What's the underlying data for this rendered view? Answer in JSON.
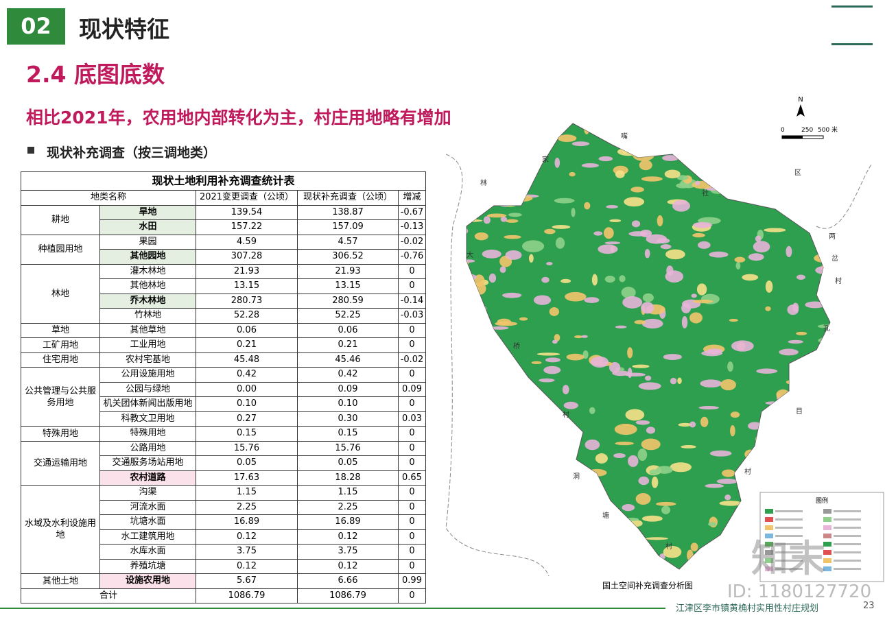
{
  "header": {
    "section_number": "02",
    "section_title": "现状特征",
    "heading": "2.4 底图底数",
    "subtitle": "相比2021年，农用地内部转化为主，村庄用地略有增加",
    "bullet": "现状补充调查（按三调地类）"
  },
  "table": {
    "title": "现状土地利用补充调查统计表",
    "columns": [
      "地类名称",
      "2021变更调查（公顷）",
      "现状补充调查（公顷）",
      "增减"
    ],
    "groups": [
      {
        "name": "耕地",
        "rows": [
          {
            "cells": [
              "旱地",
              "139.54",
              "138.87",
              "-0.67"
            ],
            "highlight": "#e4efe1"
          },
          {
            "cells": [
              "水田",
              "157.22",
              "157.09",
              "-0.13"
            ],
            "highlight": "#e4efe1"
          }
        ]
      },
      {
        "name": "种植园用地",
        "rows": [
          {
            "cells": [
              "果园",
              "4.59",
              "4.57",
              "-0.02"
            ]
          },
          {
            "cells": [
              "其他园地",
              "307.28",
              "306.52",
              "-0.76"
            ],
            "highlight": "#e4efe1"
          }
        ]
      },
      {
        "name": "林地",
        "rows": [
          {
            "cells": [
              "灌木林地",
              "21.93",
              "21.93",
              "0"
            ]
          },
          {
            "cells": [
              "其他林地",
              "13.15",
              "13.15",
              "0"
            ]
          },
          {
            "cells": [
              "乔木林地",
              "280.73",
              "280.59",
              "-0.14"
            ],
            "highlight": "#e4efe1"
          },
          {
            "cells": [
              "竹林地",
              "52.28",
              "52.25",
              "-0.03"
            ]
          }
        ]
      },
      {
        "name": "草地",
        "rows": [
          {
            "cells": [
              "其他草地",
              "0.06",
              "0.06",
              "0"
            ]
          }
        ]
      },
      {
        "name": "工矿用地",
        "rows": [
          {
            "cells": [
              "工业用地",
              "0.21",
              "0.21",
              "0"
            ]
          }
        ]
      },
      {
        "name": "住宅用地",
        "rows": [
          {
            "cells": [
              "农村宅基地",
              "45.48",
              "45.46",
              "-0.02"
            ]
          }
        ]
      },
      {
        "name": "公共管理与公共服务用地",
        "rows": [
          {
            "cells": [
              "公用设施用地",
              "0.42",
              "0.42",
              "0"
            ]
          },
          {
            "cells": [
              "公园与绿地",
              "0.00",
              "0.09",
              "0.09"
            ]
          },
          {
            "cells": [
              "机关团体新闻出版用地",
              "0.10",
              "0.10",
              "0"
            ]
          },
          {
            "cells": [
              "科教文卫用地",
              "0.27",
              "0.30",
              "0.03"
            ]
          }
        ]
      },
      {
        "name": "特殊用地",
        "rows": [
          {
            "cells": [
              "特殊用地",
              "0.15",
              "0.15",
              "0"
            ]
          }
        ]
      },
      {
        "name": "交通运输用地",
        "rows": [
          {
            "cells": [
              "公路用地",
              "15.76",
              "15.76",
              "0"
            ]
          },
          {
            "cells": [
              "交通服务场站用地",
              "0.05",
              "0.05",
              "0"
            ]
          },
          {
            "cells": [
              "农村道路",
              "17.63",
              "18.28",
              "0.65"
            ],
            "highlight": "#fbe1ea"
          }
        ]
      },
      {
        "name": "水域及水利设施用地",
        "rows": [
          {
            "cells": [
              "沟渠",
              "1.15",
              "1.15",
              "0"
            ]
          },
          {
            "cells": [
              "河流水面",
              "2.25",
              "2.25",
              "0"
            ]
          },
          {
            "cells": [
              "坑塘水面",
              "16.89",
              "16.89",
              "0"
            ]
          },
          {
            "cells": [
              "水工建筑用地",
              "0.12",
              "0.12",
              "0"
            ]
          },
          {
            "cells": [
              "水库水面",
              "3.75",
              "3.75",
              "0"
            ]
          },
          {
            "cells": [
              "养殖坑塘",
              "0.12",
              "0.12",
              "0"
            ]
          }
        ]
      },
      {
        "name": "其他土地",
        "rows": [
          {
            "cells": [
              "设施农用地",
              "5.67",
              "6.66",
              "0.99"
            ],
            "highlight": "#fbe1ea"
          }
        ]
      }
    ],
    "total": [
      "合计",
      "1086.79",
      "1086.79",
      "0"
    ]
  },
  "map": {
    "caption": "国土空间补充调查分析图",
    "north": "N",
    "scale": [
      "0",
      "250",
      "500 米"
    ],
    "legend_title": "图例",
    "place_labels": [
      "嘴",
      "家",
      "林",
      "大",
      "桥",
      "村",
      "洞",
      "塘",
      "村",
      "社",
      "区",
      "两",
      "岔",
      "村",
      "孔",
      "目",
      "村"
    ]
  },
  "footer": {
    "project": "江津区李市镇黄桷村实用性村庄规划",
    "page": "23"
  },
  "watermark": {
    "brand": "知末",
    "id": "ID: 1180127720"
  }
}
